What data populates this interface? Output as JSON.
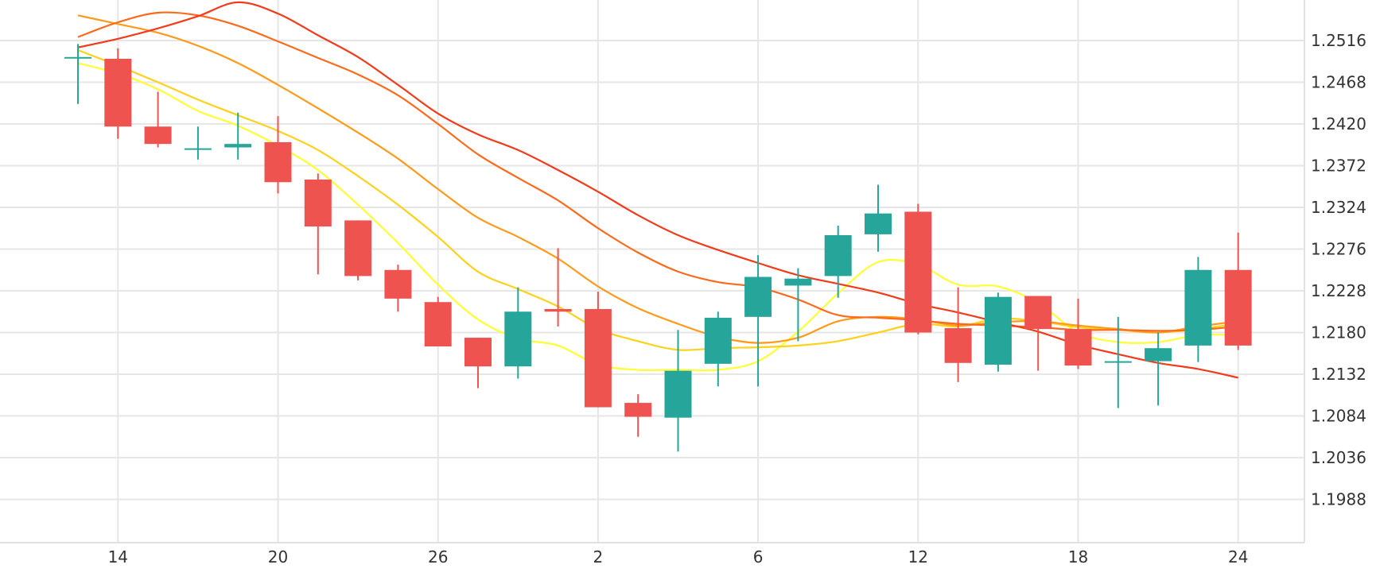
{
  "chart_data": {
    "type": "candlestick",
    "x_tick_labels": [
      "14",
      "20",
      "26",
      "2",
      "6",
      "12",
      "18",
      "24"
    ],
    "y_tick_labels": [
      "1.2516",
      "1.2468",
      "1.2420",
      "1.2372",
      "1.2324",
      "1.2276",
      "1.2228",
      "1.2180",
      "1.2132",
      "1.2084",
      "1.2036",
      "1.1988"
    ],
    "y_ticks": [
      1.2516,
      1.2468,
      1.242,
      1.2372,
      1.2324,
      1.2276,
      1.2228,
      1.218,
      1.2132,
      1.2084,
      1.2036,
      1.1988
    ],
    "ylim": [
      1.1945,
      1.2565
    ],
    "grid": true,
    "colors": {
      "up": "#26a69a",
      "down": "#ef5350",
      "grid": "#e6e6e6",
      "text": "#333333"
    },
    "candles": [
      {
        "o": 1.2497,
        "h": 1.2512,
        "l": 1.2443,
        "c": 1.2497
      },
      {
        "o": 1.2495,
        "h": 1.2507,
        "l": 1.2403,
        "c": 1.2417
      },
      {
        "o": 1.2417,
        "h": 1.2457,
        "l": 1.2393,
        "c": 1.2397
      },
      {
        "o": 1.2392,
        "h": 1.2417,
        "l": 1.2379,
        "c": 1.2392
      },
      {
        "o": 1.2393,
        "h": 1.2433,
        "l": 1.2379,
        "c": 1.2397
      },
      {
        "o": 1.2399,
        "h": 1.2429,
        "l": 1.234,
        "c": 1.2353
      },
      {
        "o": 1.2356,
        "h": 1.2363,
        "l": 1.2247,
        "c": 1.2302
      },
      {
        "o": 1.2309,
        "h": 1.2309,
        "l": 1.224,
        "c": 1.2245
      },
      {
        "o": 1.2252,
        "h": 1.2258,
        "l": 1.2204,
        "c": 1.2219
      },
      {
        "o": 1.2215,
        "h": 1.2221,
        "l": 1.2164,
        "c": 1.2164
      },
      {
        "o": 1.2174,
        "h": 1.2174,
        "l": 1.2116,
        "c": 1.2141
      },
      {
        "o": 1.2141,
        "h": 1.2232,
        "l": 1.2127,
        "c": 1.2204
      },
      {
        "o": 1.2207,
        "h": 1.2277,
        "l": 1.2187,
        "c": 1.2204
      },
      {
        "o": 1.2207,
        "h": 1.2227,
        "l": 1.2094,
        "c": 1.2094
      },
      {
        "o": 1.2099,
        "h": 1.2109,
        "l": 1.206,
        "c": 1.2083
      },
      {
        "o": 1.2082,
        "h": 1.2183,
        "l": 1.2043,
        "c": 1.2136
      },
      {
        "o": 1.2144,
        "h": 1.2204,
        "l": 1.2118,
        "c": 1.2197
      },
      {
        "o": 1.2198,
        "h": 1.2269,
        "l": 1.2118,
        "c": 1.2244
      },
      {
        "o": 1.2234,
        "h": 1.2254,
        "l": 1.217,
        "c": 1.2242
      },
      {
        "o": 1.2245,
        "h": 1.2303,
        "l": 1.222,
        "c": 1.2292
      },
      {
        "o": 1.2293,
        "h": 1.235,
        "l": 1.2273,
        "c": 1.2317
      },
      {
        "o": 1.2319,
        "h": 1.2328,
        "l": 1.2178,
        "c": 1.218
      },
      {
        "o": 1.2185,
        "h": 1.2232,
        "l": 1.2123,
        "c": 1.2145
      },
      {
        "o": 1.2143,
        "h": 1.2226,
        "l": 1.2135,
        "c": 1.2221
      },
      {
        "o": 1.2222,
        "h": 1.2222,
        "l": 1.2136,
        "c": 1.2184
      },
      {
        "o": 1.2184,
        "h": 1.2219,
        "l": 1.2138,
        "c": 1.2142
      },
      {
        "o": 1.2147,
        "h": 1.2198,
        "l": 1.2093,
        "c": 1.2147
      },
      {
        "o": 1.2147,
        "h": 1.218,
        "l": 1.2096,
        "c": 1.2162
      },
      {
        "o": 1.2165,
        "h": 1.2267,
        "l": 1.2146,
        "c": 1.2252
      },
      {
        "o": 1.2252,
        "h": 1.2295,
        "l": 1.216,
        "c": 1.2165
      }
    ],
    "moving_averages": [
      {
        "color": "#ffff33",
        "values": [
          1.249,
          1.2478,
          1.246,
          1.2435,
          1.2418,
          1.2395,
          1.2367,
          1.2327,
          1.2283,
          1.2235,
          1.2195,
          1.2173,
          1.2165,
          1.2143,
          1.2137,
          1.2137,
          1.2137,
          1.2147,
          1.2181,
          1.2225,
          1.2261,
          1.2258,
          1.2235,
          1.2233,
          1.2214,
          1.218,
          1.2169,
          1.2169,
          1.2177,
          1.2177
        ]
      },
      {
        "color": "#ffd11a",
        "values": [
          1.2505,
          1.2487,
          1.2468,
          1.2448,
          1.243,
          1.2412,
          1.239,
          1.236,
          1.2327,
          1.229,
          1.225,
          1.223,
          1.221,
          1.2184,
          1.217,
          1.216,
          1.2162,
          1.2163,
          1.2165,
          1.217,
          1.218,
          1.219,
          1.2187,
          1.2196,
          1.2193,
          1.2186,
          1.2183,
          1.218,
          1.2184,
          1.219
        ]
      },
      {
        "color": "#ff9a1a",
        "values": [
          1.2545,
          1.2535,
          1.2525,
          1.251,
          1.249,
          1.2465,
          1.2438,
          1.241,
          1.238,
          1.2345,
          1.2312,
          1.229,
          1.2265,
          1.2233,
          1.2208,
          1.219,
          1.2175,
          1.2168,
          1.2174,
          1.2193,
          1.2198,
          1.2195,
          1.2188,
          1.2192,
          1.2193,
          1.2188,
          1.2184,
          1.218,
          1.2187,
          1.2193
        ]
      },
      {
        "color": "#ff6a1a",
        "values": [
          1.252,
          1.2537,
          1.2548,
          1.2545,
          1.2533,
          1.2515,
          1.2496,
          1.2477,
          1.2453,
          1.242,
          1.2385,
          1.2358,
          1.2332,
          1.23,
          1.2272,
          1.225,
          1.2238,
          1.2232,
          1.2218,
          1.22,
          1.2197,
          1.2194,
          1.219,
          1.2188,
          1.2186,
          1.2183,
          1.2183,
          1.2182,
          1.2183,
          1.2187
        ]
      },
      {
        "color": "#f23b1a",
        "values": [
          1.2508,
          1.2518,
          1.253,
          1.2544,
          1.256,
          1.2547,
          1.2522,
          1.2497,
          1.2465,
          1.2432,
          1.2408,
          1.239,
          1.2367,
          1.2342,
          1.2315,
          1.2292,
          1.2275,
          1.226,
          1.2246,
          1.2236,
          1.2226,
          1.2213,
          1.2203,
          1.2192,
          1.2181,
          1.2166,
          1.2155,
          1.2145,
          1.2138,
          1.2128
        ]
      }
    ],
    "x_tick_candle_index": [
      1,
      5,
      9,
      13,
      17,
      21,
      25,
      29
    ]
  }
}
